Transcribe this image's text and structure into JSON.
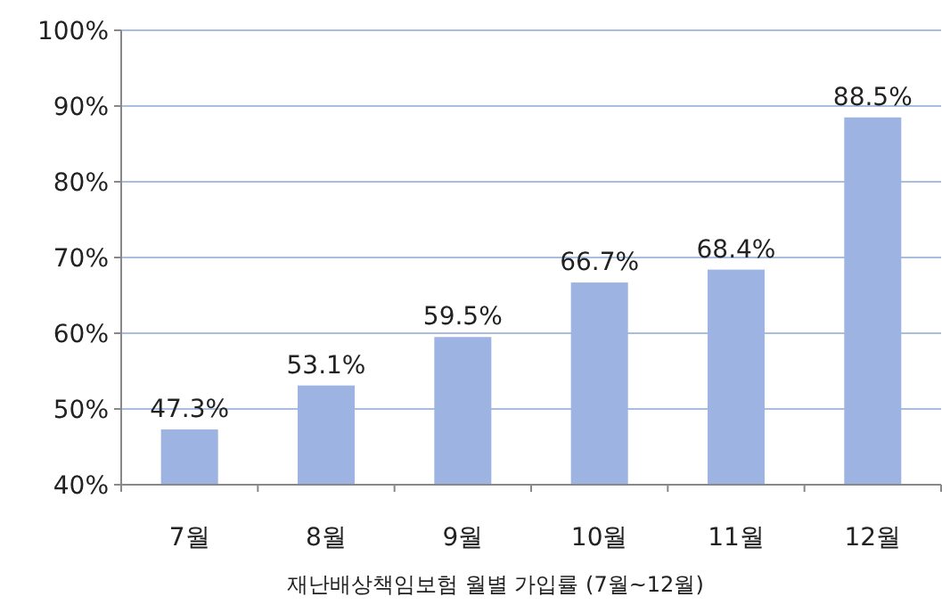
{
  "chart_data": {
    "type": "bar",
    "xlabel": "재난배상책임보험 월별 가입률 (7월~12월)",
    "categories": [
      "7월",
      "8월",
      "9월",
      "10월",
      "11월",
      "12월"
    ],
    "values": [
      47.3,
      53.1,
      59.5,
      66.7,
      68.4,
      88.5
    ],
    "value_labels": [
      "47.3%",
      "53.1%",
      "59.5%",
      "66.7%",
      "68.4%",
      "88.5%"
    ],
    "color": "#9db4e3",
    "ylim": [
      40,
      100
    ],
    "yticks": [
      {
        "value": 40,
        "label": "40%"
      },
      {
        "value": 50,
        "label": "50%"
      },
      {
        "value": 60,
        "label": "60%"
      },
      {
        "value": 70,
        "label": "70%"
      },
      {
        "value": 80,
        "label": "80%"
      },
      {
        "value": 90,
        "label": "90%"
      },
      {
        "value": 100,
        "label": "100%"
      }
    ],
    "grid": "y"
  }
}
